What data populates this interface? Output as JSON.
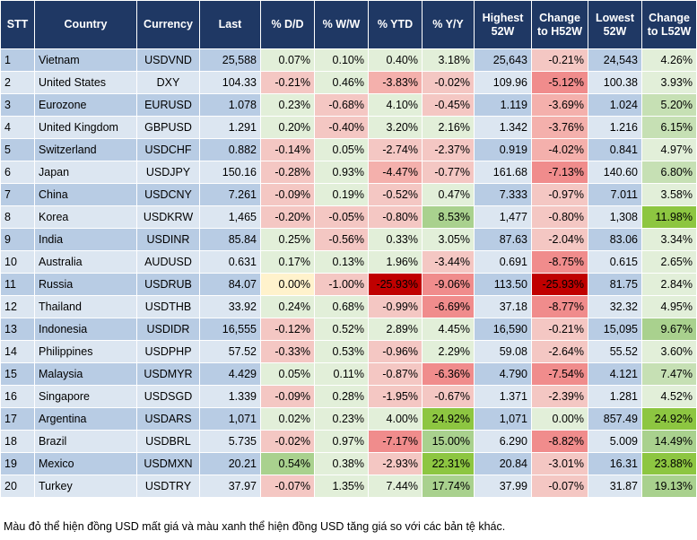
{
  "table": {
    "header": [
      "STT",
      "Country",
      "Currency",
      "Last",
      "% D/D",
      "% W/W",
      "% YTD",
      "% Y/Y",
      "Highest 52W",
      "Change to H52W",
      "Lowest 52W",
      "Change to L52W"
    ],
    "rows": [
      [
        "1",
        "Vietnam",
        "USDVND",
        "25,588",
        "0.07%",
        "0.10%",
        "0.40%",
        "3.18%",
        "25,643",
        "-0.21%",
        "24,543",
        "4.26%"
      ],
      [
        "2",
        "United States",
        "DXY",
        "104.33",
        "-0.21%",
        "0.46%",
        "-3.83%",
        "-0.02%",
        "109.96",
        "-5.12%",
        "100.38",
        "3.93%"
      ],
      [
        "3",
        "Eurozone",
        "EURUSD",
        "1.078",
        "0.23%",
        "-0.68%",
        "4.10%",
        "-0.45%",
        "1.119",
        "-3.69%",
        "1.024",
        "5.20%"
      ],
      [
        "4",
        "United Kingdom",
        "GBPUSD",
        "1.291",
        "0.20%",
        "-0.40%",
        "3.20%",
        "2.16%",
        "1.342",
        "-3.76%",
        "1.216",
        "6.15%"
      ],
      [
        "5",
        "Switzerland",
        "USDCHF",
        "0.882",
        "-0.14%",
        "0.05%",
        "-2.74%",
        "-2.37%",
        "0.919",
        "-4.02%",
        "0.841",
        "4.97%"
      ],
      [
        "6",
        "Japan",
        "USDJPY",
        "150.16",
        "-0.28%",
        "0.93%",
        "-4.47%",
        "-0.77%",
        "161.68",
        "-7.13%",
        "140.60",
        "6.80%"
      ],
      [
        "7",
        "China",
        "USDCNY",
        "7.261",
        "-0.09%",
        "0.19%",
        "-0.52%",
        "0.47%",
        "7.333",
        "-0.97%",
        "7.011",
        "3.58%"
      ],
      [
        "8",
        "Korea",
        "USDKRW",
        "1,465",
        "-0.20%",
        "-0.05%",
        "-0.80%",
        "8.53%",
        "1,477",
        "-0.80%",
        "1,308",
        "11.98%"
      ],
      [
        "9",
        "India",
        "USDINR",
        "85.84",
        "0.25%",
        "-0.56%",
        "0.33%",
        "3.05%",
        "87.63",
        "-2.04%",
        "83.06",
        "3.34%"
      ],
      [
        "10",
        "Australia",
        "AUDUSD",
        "0.631",
        "0.17%",
        "0.13%",
        "1.96%",
        "-3.44%",
        "0.691",
        "-8.75%",
        "0.615",
        "2.65%"
      ],
      [
        "11",
        "Russia",
        "USDRUB",
        "84.07",
        "0.00%",
        "-1.00%",
        "-25.93%",
        "-9.06%",
        "113.50",
        "-25.93%",
        "81.75",
        "2.84%"
      ],
      [
        "12",
        "Thailand",
        "USDTHB",
        "33.92",
        "0.24%",
        "0.68%",
        "-0.99%",
        "-6.69%",
        "37.18",
        "-8.77%",
        "32.32",
        "4.95%"
      ],
      [
        "13",
        "Indonesia",
        "USDIDR",
        "16,555",
        "-0.12%",
        "0.52%",
        "2.89%",
        "4.45%",
        "16,590",
        "-0.21%",
        "15,095",
        "9.67%"
      ],
      [
        "14",
        "Philippines",
        "USDPHP",
        "57.52",
        "-0.33%",
        "0.53%",
        "-0.96%",
        "2.29%",
        "59.08",
        "-2.64%",
        "55.52",
        "3.60%"
      ],
      [
        "15",
        "Malaysia",
        "USDMYR",
        "4.429",
        "0.05%",
        "0.11%",
        "-0.87%",
        "-6.36%",
        "4.790",
        "-7.54%",
        "4.121",
        "7.47%"
      ],
      [
        "16",
        "Singapore",
        "USDSGD",
        "1.339",
        "-0.09%",
        "0.28%",
        "-1.95%",
        "-0.67%",
        "1.371",
        "-2.39%",
        "1.281",
        "4.52%"
      ],
      [
        "17",
        "Argentina",
        "USDARS",
        "1,071",
        "0.02%",
        "0.23%",
        "4.00%",
        "24.92%",
        "1,071",
        "0.00%",
        "857.49",
        "24.92%"
      ],
      [
        "18",
        "Brazil",
        "USDBRL",
        "5.735",
        "-0.02%",
        "0.97%",
        "-7.17%",
        "15.00%",
        "6.290",
        "-8.82%",
        "5.009",
        "14.49%"
      ],
      [
        "19",
        "Mexico",
        "USDMXN",
        "20.21",
        "0.54%",
        "0.38%",
        "-2.93%",
        "22.31%",
        "20.84",
        "-3.01%",
        "16.31",
        "23.88%"
      ],
      [
        "20",
        "Turkey",
        "USDTRY",
        "37.97",
        "-0.07%",
        "1.35%",
        "7.44%",
        "17.74%",
        "37.99",
        "-0.07%",
        "31.87",
        "19.13%"
      ]
    ],
    "cell_colors": [
      [
        null,
        null,
        null,
        null,
        "#e2efd9",
        "#e2efd9",
        "#e2efd9",
        "#e2efd9",
        null,
        "#f4c7c3",
        null,
        "#e2efd9"
      ],
      [
        null,
        null,
        null,
        null,
        "#f4c7c3",
        "#e2efd9",
        "#f4b0ac",
        "#f4c7c3",
        null,
        "#f08c8c",
        null,
        "#e2efd9"
      ],
      [
        null,
        null,
        null,
        null,
        "#e2efd9",
        "#f4c7c3",
        "#e2efd9",
        "#f4c7c3",
        null,
        "#f4b0ac",
        null,
        "#c6e0b4"
      ],
      [
        null,
        null,
        null,
        null,
        "#e2efd9",
        "#f4c7c3",
        "#e2efd9",
        "#e2efd9",
        null,
        "#f4b0ac",
        null,
        "#c6e0b4"
      ],
      [
        null,
        null,
        null,
        null,
        "#f4c7c3",
        "#e2efd9",
        "#f4c7c3",
        "#f4c7c3",
        null,
        "#f4b0ac",
        null,
        "#e2efd9"
      ],
      [
        null,
        null,
        null,
        null,
        "#f4c7c3",
        "#e2efd9",
        "#f4b0ac",
        "#f4c7c3",
        null,
        "#f08c8c",
        null,
        "#c6e0b4"
      ],
      [
        null,
        null,
        null,
        null,
        "#f4c7c3",
        "#e2efd9",
        "#f4c7c3",
        "#e2efd9",
        null,
        "#f4c7c3",
        null,
        "#e2efd9"
      ],
      [
        null,
        null,
        null,
        null,
        "#f4c7c3",
        "#f4c7c3",
        "#f4c7c3",
        "#a9d18e",
        null,
        "#f4c7c3",
        null,
        "#8dc641"
      ],
      [
        null,
        null,
        null,
        null,
        "#e2efd9",
        "#f4c7c3",
        "#e2efd9",
        "#e2efd9",
        null,
        "#f4c7c3",
        null,
        "#e2efd9"
      ],
      [
        null,
        null,
        null,
        null,
        "#e2efd9",
        "#e2efd9",
        "#e2efd9",
        "#f4c7c3",
        null,
        "#f08c8c",
        null,
        "#e2efd9"
      ],
      [
        null,
        null,
        null,
        null,
        "#fff2cc",
        "#f4c7c3",
        "#c00000",
        "#f08c8c",
        null,
        "#c00000",
        null,
        "#e2efd9"
      ],
      [
        null,
        null,
        null,
        null,
        "#e2efd9",
        "#e2efd9",
        "#f4c7c3",
        "#f08c8c",
        null,
        "#f08c8c",
        null,
        "#e2efd9"
      ],
      [
        null,
        null,
        null,
        null,
        "#f4c7c3",
        "#e2efd9",
        "#e2efd9",
        "#e2efd9",
        null,
        "#f4c7c3",
        null,
        "#a9d18e"
      ],
      [
        null,
        null,
        null,
        null,
        "#f4c7c3",
        "#e2efd9",
        "#f4c7c3",
        "#e2efd9",
        null,
        "#f4c7c3",
        null,
        "#e2efd9"
      ],
      [
        null,
        null,
        null,
        null,
        "#e2efd9",
        "#e2efd9",
        "#f4c7c3",
        "#f08c8c",
        null,
        "#f08c8c",
        null,
        "#c6e0b4"
      ],
      [
        null,
        null,
        null,
        null,
        "#f4c7c3",
        "#e2efd9",
        "#f4c7c3",
        "#f4c7c3",
        null,
        "#f4c7c3",
        null,
        "#e2efd9"
      ],
      [
        null,
        null,
        null,
        null,
        "#e2efd9",
        "#e2efd9",
        "#e2efd9",
        "#8dc641",
        null,
        "#e2efd9",
        null,
        "#8dc641"
      ],
      [
        null,
        null,
        null,
        null,
        "#f4c7c3",
        "#e2efd9",
        "#f08c8c",
        "#a9d18e",
        null,
        "#f08c8c",
        null,
        "#a9d18e"
      ],
      [
        null,
        null,
        null,
        null,
        "#a9d18e",
        "#e2efd9",
        "#f4c7c3",
        "#8dc641",
        null,
        "#f4c7c3",
        null,
        "#8dc641"
      ],
      [
        null,
        null,
        null,
        null,
        "#f4c7c3",
        "#e2efd9",
        "#e2efd9",
        "#a9d18e",
        null,
        "#f4c7c3",
        null,
        "#a9d18e"
      ]
    ]
  },
  "footer": "Màu đỏ thể hiện đồng USD mất giá và màu xanh thể hiện đồng USD tăng giá so với các bản tệ khác."
}
